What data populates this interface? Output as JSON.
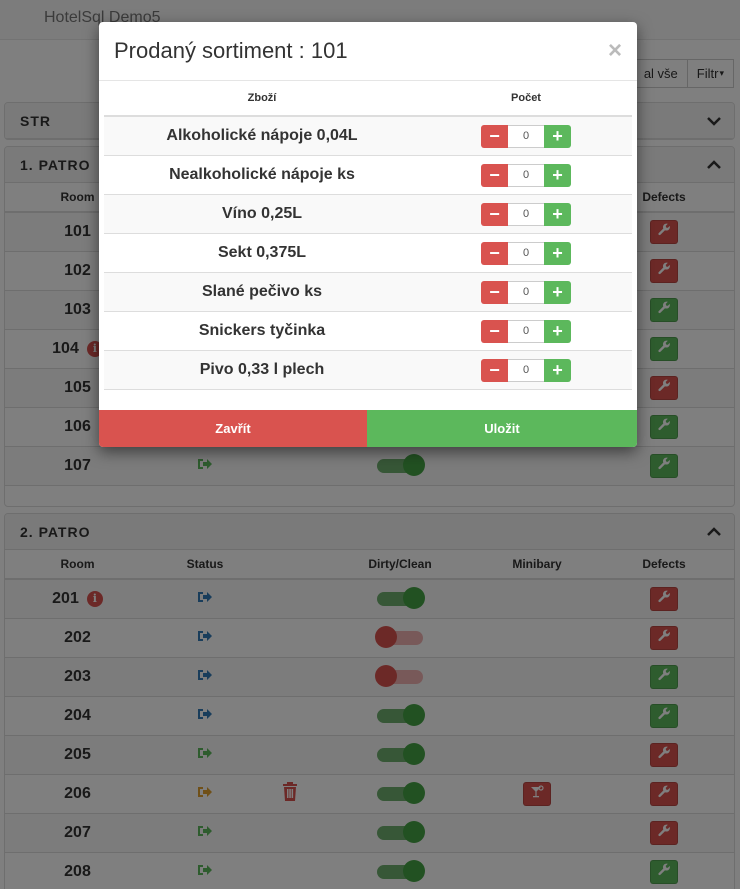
{
  "app": {
    "brand": "HotelSql Demo5"
  },
  "toolbar": {
    "expand_all_label": "al vše",
    "filter_label": "Filtr"
  },
  "sections": {
    "str": {
      "title": "STR"
    },
    "floor1": {
      "title": "1. PATRO",
      "columns": {
        "room": "Room",
        "defects": "Defects"
      },
      "rooms": [
        {
          "num": "101",
          "info": false,
          "defect": "red"
        },
        {
          "num": "102",
          "info": false,
          "defect": "red"
        },
        {
          "num": "103",
          "info": false,
          "defect": "green"
        },
        {
          "num": "104",
          "info": true,
          "defect": "green"
        },
        {
          "num": "105",
          "info": false,
          "defect": "red"
        },
        {
          "num": "106",
          "info": false,
          "defect": "green"
        },
        {
          "num": "107",
          "info": false,
          "status": "checkout-green",
          "clean": true,
          "defect": "green"
        }
      ]
    },
    "floor2": {
      "title": "2. PATRO",
      "columns": {
        "room": "Room",
        "status": "Status",
        "dirty": "Dirty/Clean",
        "minibar": "Minibary",
        "defects": "Defects"
      },
      "rooms": [
        {
          "num": "201",
          "info": true,
          "status": "blue",
          "trash": false,
          "clean": true,
          "minibar": false,
          "defect": "red"
        },
        {
          "num": "202",
          "info": false,
          "status": "blue",
          "trash": false,
          "clean": false,
          "minibar": false,
          "defect": "red"
        },
        {
          "num": "203",
          "info": false,
          "status": "blue",
          "trash": false,
          "clean": false,
          "minibar": false,
          "defect": "green"
        },
        {
          "num": "204",
          "info": false,
          "status": "blue",
          "trash": false,
          "clean": true,
          "minibar": false,
          "defect": "green"
        },
        {
          "num": "205",
          "info": false,
          "status": "green",
          "trash": false,
          "clean": true,
          "minibar": false,
          "defect": "red"
        },
        {
          "num": "206",
          "info": false,
          "status": "orange",
          "trash": true,
          "clean": true,
          "minibar": true,
          "defect": "red"
        },
        {
          "num": "207",
          "info": false,
          "status": "green",
          "trash": false,
          "clean": true,
          "minibar": false,
          "defect": "red"
        },
        {
          "num": "208",
          "info": false,
          "status": "green",
          "trash": false,
          "clean": true,
          "minibar": false,
          "defect": "green"
        }
      ]
    }
  },
  "modal": {
    "title": "Prodaný sortiment : 101",
    "col_item": "Zboží",
    "col_count": "Počet",
    "items": [
      {
        "name": "Alkoholické nápoje 0,04L",
        "count": "0"
      },
      {
        "name": "Nealkoholické nápoje ks",
        "count": "0"
      },
      {
        "name": "Víno 0,25L",
        "count": "0"
      },
      {
        "name": "Sekt 0,375L",
        "count": "0"
      },
      {
        "name": "Slané pečivo ks",
        "count": "0"
      },
      {
        "name": "Snickers tyčinka",
        "count": "0"
      },
      {
        "name": "Pivo 0,33 l plech",
        "count": "0"
      }
    ],
    "close_label": "Zavřít",
    "save_label": "Uložit"
  },
  "colors": {
    "red": "#d9534f",
    "green": "#5cb85c",
    "blue": "#337ab7",
    "orange": "#e0a030"
  }
}
